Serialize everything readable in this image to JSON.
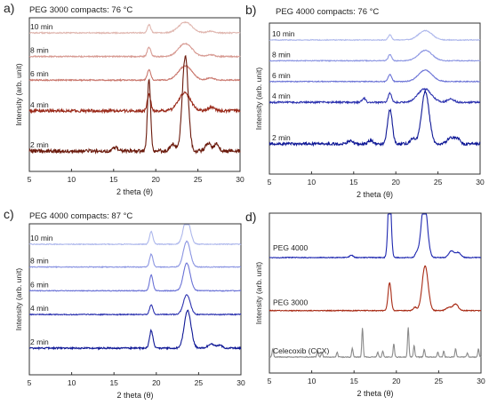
{
  "chart_data": [
    {
      "type": "line",
      "panel_label": "a)",
      "title": "PEG 3000 compacts: 76 °C",
      "xlabel": "2 theta (θ)",
      "ylabel": "Intensity (arb. unit)",
      "xlim": [
        5,
        30
      ],
      "xticks": [
        "5",
        "10",
        "15",
        "20",
        "25",
        "30"
      ],
      "y_axis_ticks": false,
      "grid": false,
      "series": [
        {
          "name": "10 min",
          "color": "#e0b7b0",
          "baseline": 10.0,
          "peaks": [
            [
              19.2,
              0.7,
              0.2
            ],
            [
              23.5,
              0.9,
              0.8
            ],
            [
              26.5,
              0.15,
              0.4
            ]
          ],
          "noise": 0.05
        },
        {
          "name": "8 min",
          "color": "#d79a92",
          "baseline": 8.0,
          "peaks": [
            [
              19.2,
              0.8,
              0.2
            ],
            [
              23.5,
              1.1,
              0.8
            ],
            [
              26.5,
              0.15,
              0.4
            ]
          ],
          "noise": 0.05
        },
        {
          "name": "6 min",
          "color": "#c9766c",
          "baseline": 6.0,
          "peaks": [
            [
              19.2,
              0.9,
              0.2
            ],
            [
              23.5,
              1.2,
              0.8
            ],
            [
              26.5,
              0.2,
              0.4
            ]
          ],
          "noise": 0.05
        },
        {
          "name": "4 min",
          "color": "#9a2a1a",
          "baseline": 3.4,
          "peaks": [
            [
              19.2,
              1.4,
              0.2
            ],
            [
              23.4,
              1.5,
              0.7
            ],
            [
              26.6,
              0.3,
              0.4
            ]
          ],
          "noise": 0.12
        },
        {
          "name": "2 min",
          "color": "#6b1a0c",
          "baseline": 0.0,
          "peaks": [
            [
              19.2,
              6.2,
              0.18
            ],
            [
              23.5,
              8.0,
              0.35
            ],
            [
              22.0,
              0.6,
              0.3
            ],
            [
              26.2,
              0.7,
              0.3
            ],
            [
              27.2,
              0.6,
              0.3
            ],
            [
              15.2,
              0.3,
              0.3
            ]
          ],
          "noise": 0.15
        }
      ]
    },
    {
      "type": "line",
      "panel_label": "b)",
      "title": "PEG 4000 compacts: 76 °C",
      "xlabel": "2 theta (θ)",
      "ylabel": "Intensity (arb. unit)",
      "xlim": [
        5,
        30
      ],
      "xticks": [
        "5",
        "10",
        "15",
        "20",
        "25",
        "30"
      ],
      "y_axis_ticks": false,
      "grid": false,
      "series": [
        {
          "name": "10 min",
          "color": "#aeb8ec",
          "baseline": 10.0,
          "peaks": [
            [
              19.3,
              0.5,
              0.2
            ],
            [
              23.5,
              0.9,
              0.8
            ]
          ],
          "noise": 0.04
        },
        {
          "name": "8 min",
          "color": "#8b95e2",
          "baseline": 8.0,
          "peaks": [
            [
              19.3,
              0.6,
              0.2
            ],
            [
              23.5,
              1.0,
              0.8
            ]
          ],
          "noise": 0.04
        },
        {
          "name": "6 min",
          "color": "#6a72d6",
          "baseline": 6.0,
          "peaks": [
            [
              19.3,
              0.7,
              0.2
            ],
            [
              23.5,
              1.1,
              0.8
            ]
          ],
          "noise": 0.04
        },
        {
          "name": "4 min",
          "color": "#2e34b0",
          "baseline": 4.0,
          "peaks": [
            [
              19.3,
              0.9,
              0.2
            ],
            [
              23.4,
              1.3,
              0.8
            ],
            [
              16.2,
              0.4,
              0.2
            ],
            [
              26.5,
              0.3,
              0.4
            ]
          ],
          "noise": 0.08
        },
        {
          "name": "2 min",
          "color": "#0f1896",
          "baseline": 0.0,
          "peaks": [
            [
              19.3,
              3.3,
              0.28
            ],
            [
              23.5,
              5.0,
              0.45
            ],
            [
              22.0,
              0.5,
              0.3
            ],
            [
              26.5,
              0.6,
              0.4
            ],
            [
              27.3,
              0.5,
              0.3
            ],
            [
              14.6,
              0.3,
              0.3
            ],
            [
              17.0,
              0.3,
              0.3
            ]
          ],
          "noise": 0.12
        }
      ]
    },
    {
      "type": "line",
      "panel_label": "c)",
      "title": "PEG 4000 compacts: 87 °C",
      "xlabel": "2 theta (θ)",
      "ylabel": "Intensity (arb. unit)",
      "xlim": [
        5,
        30
      ],
      "xticks": [
        "5",
        "10",
        "15",
        "20",
        "25",
        "30"
      ],
      "y_axis_ticks": false,
      "grid": false,
      "series": [
        {
          "name": "10 min",
          "color": "#aeb8ec",
          "baseline": 10.5,
          "peaks": [
            [
              19.4,
              1.3,
              0.2
            ],
            [
              23.6,
              2.6,
              0.4
            ]
          ],
          "noise": 0.04
        },
        {
          "name": "8 min",
          "color": "#8b95e2",
          "baseline": 8.2,
          "peaks": [
            [
              19.4,
              1.3,
              0.2
            ],
            [
              23.6,
              2.6,
              0.4
            ]
          ],
          "noise": 0.04
        },
        {
          "name": "6 min",
          "color": "#6a72d6",
          "baseline": 5.8,
          "peaks": [
            [
              19.4,
              1.6,
              0.2
            ],
            [
              23.6,
              2.8,
              0.4
            ]
          ],
          "noise": 0.04
        },
        {
          "name": "4 min",
          "color": "#2e34b0",
          "baseline": 3.4,
          "peaks": [
            [
              19.4,
              1.0,
              0.2
            ],
            [
              23.6,
              2.0,
              0.4
            ]
          ],
          "noise": 0.05
        },
        {
          "name": "2 min",
          "color": "#0f1896",
          "baseline": 0.0,
          "peaks": [
            [
              19.4,
              1.8,
              0.2
            ],
            [
              23.7,
              3.8,
              0.4
            ],
            [
              26.5,
              0.4,
              0.4
            ],
            [
              27.5,
              0.3,
              0.3
            ]
          ],
          "noise": 0.08
        }
      ]
    },
    {
      "type": "line",
      "panel_label": "d)",
      "title": "",
      "xlabel": "2 theta (θ)",
      "ylabel": "Intensity (arb. unit)",
      "xlim": [
        5,
        30
      ],
      "xticks": [
        "5",
        "10",
        "15",
        "20",
        "25",
        "30"
      ],
      "y_axis_ticks": false,
      "grid": false,
      "series": [
        {
          "name": "PEG 4000",
          "color": "#1f28b0",
          "baseline": 12.0,
          "peaks": [
            [
              19.2,
              9.0,
              0.18
            ],
            [
              23.3,
              7.0,
              0.35
            ],
            [
              26.5,
              0.8,
              0.3
            ],
            [
              27.3,
              0.6,
              0.3
            ],
            [
              22.4,
              0.5,
              0.2
            ],
            [
              14.7,
              0.3,
              0.2
            ]
          ],
          "noise": 0.05
        },
        {
          "name": "PEG 3000",
          "color": "#a82a14",
          "baseline": 5.6,
          "peaks": [
            [
              19.2,
              3.4,
              0.18
            ],
            [
              23.4,
              5.4,
              0.35
            ],
            [
              27.0,
              0.8,
              0.3
            ],
            [
              26.2,
              0.4,
              0.3
            ],
            [
              22.2,
              0.4,
              0.2
            ]
          ],
          "noise": 0.05
        },
        {
          "name": "Celecoxib (CCX)",
          "color": "#8a8a8a",
          "baseline": 0.0,
          "peaks": [
            [
              5.4,
              1.0,
              0.08
            ],
            [
              10.7,
              0.8,
              0.08
            ],
            [
              11.2,
              0.6,
              0.08
            ],
            [
              13.0,
              0.6,
              0.08
            ],
            [
              14.8,
              1.1,
              0.08
            ],
            [
              16.0,
              3.5,
              0.08
            ],
            [
              17.8,
              0.6,
              0.08
            ],
            [
              18.4,
              0.7,
              0.08
            ],
            [
              19.7,
              1.6,
              0.08
            ],
            [
              21.4,
              3.6,
              0.08
            ],
            [
              22.1,
              1.4,
              0.08
            ],
            [
              23.3,
              0.9,
              0.08
            ],
            [
              24.9,
              0.6,
              0.08
            ],
            [
              25.6,
              0.7,
              0.08
            ],
            [
              27.0,
              1.0,
              0.08
            ],
            [
              28.4,
              0.5,
              0.08
            ],
            [
              29.7,
              1.0,
              0.08
            ]
          ],
          "noise": 0.05
        }
      ]
    }
  ]
}
